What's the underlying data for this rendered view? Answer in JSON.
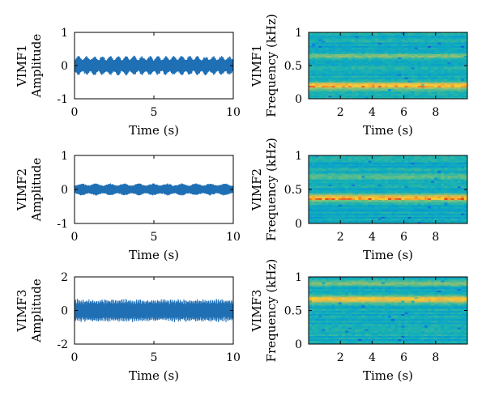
{
  "figure": {
    "panels": [
      {
        "id": "vimf1-waveform",
        "ylabel_top": "VIMF1",
        "ylabel_bottom": "Amplitude",
        "xlabel": "Time (s)"
      },
      {
        "id": "vimf1-spectrogram",
        "ylabel_top": "VIMF1",
        "ylabel_bottom": "Frequency (kHz)",
        "xlabel": "Time (s)"
      },
      {
        "id": "vimf2-waveform",
        "ylabel_top": "VIMF2",
        "ylabel_bottom": "Amplitude",
        "xlabel": "Time (s)"
      },
      {
        "id": "vimf2-spectrogram",
        "ylabel_top": "VIMF2",
        "ylabel_bottom": "Frequency (kHz)",
        "xlabel": "Time (s)"
      },
      {
        "id": "vimf3-waveform",
        "ylabel_top": "VIMF3",
        "ylabel_bottom": "Amplitude",
        "xlabel": "Time (s)"
      },
      {
        "id": "vimf3-spectrogram",
        "ylabel_top": "VIMF3",
        "ylabel_bottom": "Frequency (kHz)",
        "xlabel": "Time (s)"
      }
    ]
  },
  "colors": {
    "waveform": "#1f6fb5",
    "spectrogram_colormap": "parula"
  },
  "chart_data": [
    {
      "type": "line",
      "title": "",
      "xlabel": "Time (s)",
      "ylabel": "VIMF1 Amplitude",
      "xlim": [
        0,
        10
      ],
      "ylim": [
        -1,
        1
      ],
      "xticks": [
        0,
        5,
        10
      ],
      "yticks": [
        -1,
        0,
        1
      ],
      "signal": {
        "base_amplitude": 0.18,
        "peak_amplitude": 0.3,
        "beat_period_s": 0.5
      },
      "grid": false
    },
    {
      "type": "heatmap",
      "title": "",
      "xlabel": "Time (s)",
      "ylabel": "VIMF1 Frequency (kHz)",
      "xlim": [
        0,
        10
      ],
      "ylim": [
        0,
        1
      ],
      "xticks": [
        2,
        4,
        6,
        8
      ],
      "yticks": [
        0,
        0.5,
        1
      ],
      "dominant_band_khz": 0.2,
      "band_width_khz": 0.055,
      "secondary_band_khz": 0.65,
      "colormap": "parula"
    },
    {
      "type": "line",
      "title": "",
      "xlabel": "Time (s)",
      "ylabel": "VIMF2 Amplitude",
      "xlim": [
        0,
        10
      ],
      "ylim": [
        -1,
        1
      ],
      "xticks": [
        0,
        5,
        10
      ],
      "yticks": [
        -1,
        0,
        1
      ],
      "signal": {
        "base_amplitude": 0.12,
        "peak_amplitude": 0.18,
        "beat_period_s": 0.9
      },
      "grid": false
    },
    {
      "type": "heatmap",
      "title": "",
      "xlabel": "Time (s)",
      "ylabel": "VIMF2 Frequency (kHz)",
      "xlim": [
        0,
        10
      ],
      "ylim": [
        0,
        1
      ],
      "xticks": [
        2,
        4,
        6,
        8
      ],
      "yticks": [
        0,
        0.5,
        1
      ],
      "dominant_band_khz": 0.38,
      "band_width_khz": 0.05,
      "secondary_band_khz": 0.7,
      "colormap": "parula"
    },
    {
      "type": "line",
      "title": "",
      "xlabel": "Time (s)",
      "ylabel": "VIMF3 Amplitude",
      "xlim": [
        0,
        10
      ],
      "ylim": [
        -2,
        2
      ],
      "xticks": [
        0,
        5,
        10
      ],
      "yticks": [
        -2,
        0,
        2
      ],
      "signal": {
        "base_amplitude": 0.4,
        "peak_amplitude": 0.7,
        "beat_period_s": 0.12
      },
      "grid": false
    },
    {
      "type": "heatmap",
      "title": "",
      "xlabel": "Time (s)",
      "ylabel": "VIMF3 Frequency (kHz)",
      "xlim": [
        0,
        10
      ],
      "ylim": [
        0,
        1
      ],
      "xticks": [
        2,
        4,
        6,
        8
      ],
      "yticks": [
        0,
        0.5,
        1
      ],
      "dominant_band_khz": 0.67,
      "band_width_khz": 0.05,
      "secondary_band_khz": 0.9,
      "colormap": "parula"
    }
  ]
}
